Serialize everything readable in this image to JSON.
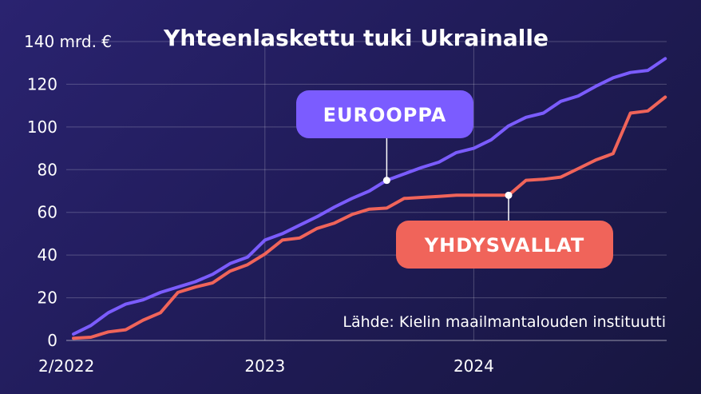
{
  "chart_data": {
    "type": "line",
    "title": "Yhteenlaskettu tuki Ukrainalle",
    "ylabel": "mrd. €",
    "source": "Lähde: Kielin maailmantalouden instituutti",
    "x_ticks": [
      "2/2022",
      "2023",
      "2024"
    ],
    "y_ticks": [
      "0",
      "20",
      "40",
      "60",
      "80",
      "100",
      "120",
      "140 mrd. €"
    ],
    "ylim": [
      0,
      140
    ],
    "grid": true,
    "x": [
      "2022-02",
      "2022-03",
      "2022-04",
      "2022-05",
      "2022-06",
      "2022-07",
      "2022-08",
      "2022-09",
      "2022-10",
      "2022-11",
      "2022-12",
      "2023-01",
      "2023-02",
      "2023-03",
      "2023-04",
      "2023-05",
      "2023-06",
      "2023-07",
      "2023-08",
      "2023-09",
      "2023-10",
      "2023-11",
      "2023-12",
      "2024-01",
      "2024-02",
      "2024-03",
      "2024-04",
      "2024-05",
      "2024-06",
      "2024-07",
      "2024-08",
      "2024-09",
      "2024-10",
      "2024-11",
      "2024-12"
    ],
    "series": [
      {
        "name": "EUROOPPA",
        "color": "#7b5cff",
        "values": [
          3,
          7,
          13,
          17,
          19,
          22.5,
          25,
          27.5,
          31,
          36,
          39,
          47,
          50,
          54,
          58,
          62.5,
          66.5,
          70,
          75,
          78,
          81,
          83.5,
          88,
          90,
          94,
          100.5,
          104.5,
          106.5,
          112,
          114.5,
          119,
          123,
          125.5,
          126.5,
          132
        ]
      },
      {
        "name": "YHDYSVALLAT",
        "color": "#f0645a",
        "values": [
          1,
          1.5,
          4,
          5,
          9.5,
          13,
          22.5,
          25,
          27,
          32.5,
          35.5,
          40.5,
          47,
          48,
          52.5,
          55,
          59,
          61.5,
          62,
          66.5,
          67,
          67.5,
          68,
          68,
          68,
          68,
          75,
          75.5,
          76.5,
          80.5,
          84.5,
          87.5,
          106.5,
          107.5,
          114
        ]
      }
    ]
  }
}
